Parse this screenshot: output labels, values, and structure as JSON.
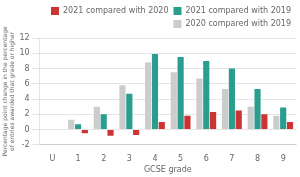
{
  "chart_data": {
    "type": "bar",
    "categories": [
      "U",
      "1",
      "2",
      "3",
      "4",
      "5",
      "6",
      "7",
      "8",
      "9"
    ],
    "series": [
      {
        "name": "2020 compared with 2019",
        "color": "#cccccc",
        "values": [
          0,
          1.3,
          3.0,
          5.8,
          8.8,
          7.5,
          6.7,
          5.3,
          3.0,
          1.8
        ]
      },
      {
        "name": "2021 compared with 2019",
        "color": "#2a9d8f",
        "values": [
          0,
          0.7,
          2.0,
          4.7,
          9.9,
          9.5,
          9.0,
          8.0,
          5.3,
          2.9
        ]
      },
      {
        "name": "2021 compared with 2020",
        "color": "#cc3333",
        "values": [
          0,
          -0.5,
          -0.8,
          -0.7,
          1.0,
          1.8,
          2.3,
          2.5,
          2.0,
          1.0
        ]
      }
    ],
    "xlabel": "GCSE grade",
    "ylabel": "Percentage point change in the percentage\nof entries awarded that grade or higher",
    "ylim": [
      -2,
      12
    ],
    "yticks": [
      -2,
      0,
      2,
      4,
      6,
      8,
      10,
      12
    ],
    "grid": true,
    "legend": "upper right"
  }
}
